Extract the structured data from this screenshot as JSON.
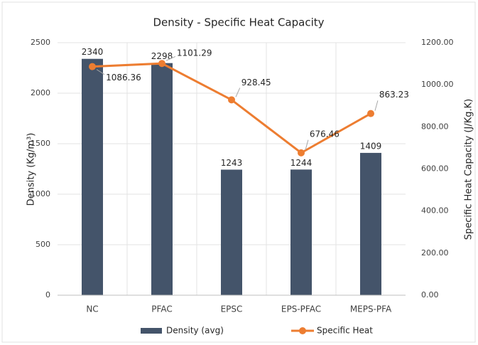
{
  "chart_data": {
    "type": "bar",
    "title": "Density - Specific Heat Capacity",
    "categories": [
      "NC",
      "PFAC",
      "EPSC",
      "EPS-PFAC",
      "MEPS-PFA"
    ],
    "y_label": "Density (Kg/m³)",
    "y2_label": "Specific Heat Capacity (J/Kg.K)",
    "series": [
      {
        "name": "Density (avg)",
        "type": "bar",
        "color": "#44546a",
        "values": [
          2340,
          2298,
          1243,
          1244,
          1409
        ]
      },
      {
        "name": "Specific Heat",
        "type": "line",
        "axis": "y2",
        "color": "#ed7d31",
        "values": [
          1086.36,
          1101.29,
          928.45,
          676.46,
          863.23
        ]
      }
    ],
    "ylim": [
      0,
      2500
    ],
    "yticks": [
      0,
      500,
      1000,
      1500,
      2000,
      2500
    ],
    "y2lim": [
      0,
      1200
    ],
    "y2ticks": [
      {
        "value": 0,
        "label": "0.00"
      },
      {
        "value": 200,
        "label": "200.00"
      },
      {
        "value": 400,
        "label": "400.00"
      },
      {
        "value": 600,
        "label": "600.00"
      },
      {
        "value": 800,
        "label": "800.00"
      },
      {
        "value": 1000,
        "label": "1000.00"
      },
      {
        "value": 1200,
        "label": "1200.00"
      }
    ],
    "grid": true,
    "legend": "bottom"
  }
}
